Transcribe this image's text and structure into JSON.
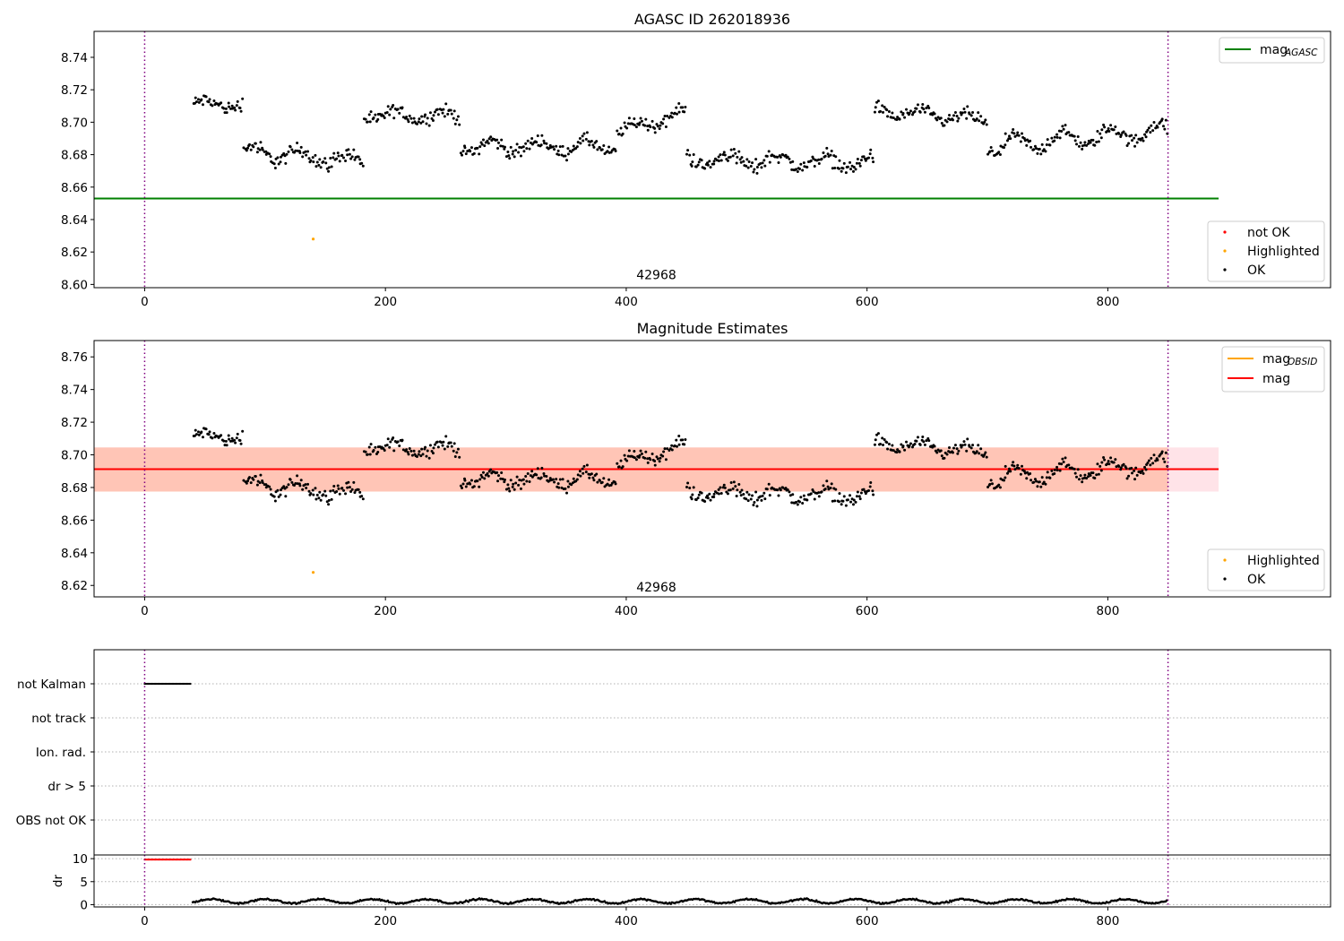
{
  "chart_data": [
    {
      "id": "agasc",
      "type": "scatter",
      "title": "AGASC ID 262018936",
      "xlim": [
        -42,
        985
      ],
      "ylim": [
        8.598,
        8.756
      ],
      "yticks": [
        8.6,
        8.62,
        8.64,
        8.66,
        8.68,
        8.7,
        8.72,
        8.74
      ],
      "xticks": [
        0,
        200,
        400,
        600,
        800
      ],
      "vlines": [
        0,
        850
      ],
      "annotation": {
        "text": "42968",
        "x": 425,
        "y": 8.606
      },
      "hlines": [
        {
          "name": "mag_AGASC",
          "y": 8.653,
          "x0": -42,
          "x1": 892,
          "color": "#008000"
        }
      ],
      "legend_lines": [
        {
          "label": "mag",
          "sub": "AGASC",
          "color": "#008000"
        }
      ],
      "legend_points": [
        {
          "label": "not OK",
          "color": "#ff0000"
        },
        {
          "label": "Highlighted",
          "color": "#ffa500"
        },
        {
          "label": "OK",
          "color": "#000000"
        }
      ],
      "highlighted": [
        {
          "x": 140,
          "y": 8.628
        }
      ],
      "series": [
        {
          "x0": 40,
          "x1": 82,
          "mean": 8.711,
          "amp": 0.0025,
          "trend": 0.0,
          "noise": 0.006
        },
        {
          "x0": 82,
          "x1": 182,
          "mean": 8.679,
          "amp": 0.004,
          "trend": -0.006,
          "noise": 0.007
        },
        {
          "x0": 182,
          "x1": 262,
          "mean": 8.704,
          "amp": 0.003,
          "trend": 0.0,
          "noise": 0.006
        },
        {
          "x0": 262,
          "x1": 392,
          "mean": 8.685,
          "amp": 0.004,
          "trend": 0.0,
          "noise": 0.006
        },
        {
          "x0": 392,
          "x1": 450,
          "mean": 8.7,
          "amp": 0.003,
          "trend": 0.012,
          "noise": 0.006
        },
        {
          "x0": 450,
          "x1": 606,
          "mean": 8.676,
          "amp": 0.004,
          "trend": -0.002,
          "noise": 0.007
        },
        {
          "x0": 606,
          "x1": 700,
          "mean": 8.704,
          "amp": 0.003,
          "trend": -0.006,
          "noise": 0.006
        },
        {
          "x0": 700,
          "x1": 850,
          "mean": 8.69,
          "amp": 0.005,
          "trend": 0.01,
          "noise": 0.006
        }
      ]
    },
    {
      "id": "estimates",
      "type": "scatter",
      "title": "Magnitude Estimates",
      "xlim": [
        -42,
        985
      ],
      "ylim": [
        8.613,
        8.77
      ],
      "yticks": [
        8.62,
        8.64,
        8.66,
        8.68,
        8.7,
        8.72,
        8.74,
        8.76
      ],
      "xticks": [
        0,
        200,
        400,
        600,
        800
      ],
      "vlines": [
        0,
        850
      ],
      "annotation": {
        "text": "42968",
        "x": 425,
        "y": 8.619
      },
      "bands": [
        {
          "y0": 8.6775,
          "y1": 8.7045,
          "x0": -42,
          "x1": 892,
          "color": "#ffc0cb",
          "opacity": 0.45
        },
        {
          "y0": 8.6775,
          "y1": 8.7045,
          "x0": -42,
          "x1": 850,
          "color": "#ffa07a",
          "opacity": 0.45
        }
      ],
      "hlines": [
        {
          "name": "mag_OBSID",
          "y": 8.6912,
          "x0": -42,
          "x1": 850,
          "color": "#ffa500"
        },
        {
          "name": "mag",
          "y": 8.6912,
          "x0": -42,
          "x1": 892,
          "color": "#ff0000"
        }
      ],
      "legend_lines": [
        {
          "label": "mag",
          "sub": "OBSID",
          "color": "#ffa500"
        },
        {
          "label": "mag",
          "sub": "",
          "color": "#ff0000"
        }
      ],
      "legend_points": [
        {
          "label": "Highlighted",
          "color": "#ffa500"
        },
        {
          "label": "OK",
          "color": "#000000"
        }
      ],
      "highlighted": [
        {
          "x": 140,
          "y": 8.628
        }
      ],
      "series_from": "agasc"
    },
    {
      "id": "flags",
      "type": "scatter",
      "xlim": [
        -42,
        985
      ],
      "xticks": [
        0,
        200,
        400,
        600,
        800
      ],
      "vlines": [
        0,
        850
      ],
      "categories": [
        "not Kalman",
        "not track",
        "Ion. rad.",
        "dr > 5",
        "OBS not OK"
      ],
      "flag_points": [
        {
          "category": "not Kalman",
          "x0": 0,
          "x1": 38
        }
      ]
    },
    {
      "id": "dr",
      "type": "scatter",
      "ylabel": "dr",
      "xlim": [
        -42,
        985
      ],
      "ylim": [
        -0.5,
        10.8
      ],
      "yticks": [
        0,
        5,
        10
      ],
      "xticks": [
        0,
        200,
        400,
        600,
        800
      ],
      "vlines": [
        0,
        850
      ],
      "clipped": {
        "x0": 0,
        "x1": 38,
        "y": 9.8,
        "color": "#ff0000"
      },
      "series": {
        "x0": 40,
        "x1": 850,
        "mean": 0.75,
        "amp": 0.45
      }
    }
  ]
}
